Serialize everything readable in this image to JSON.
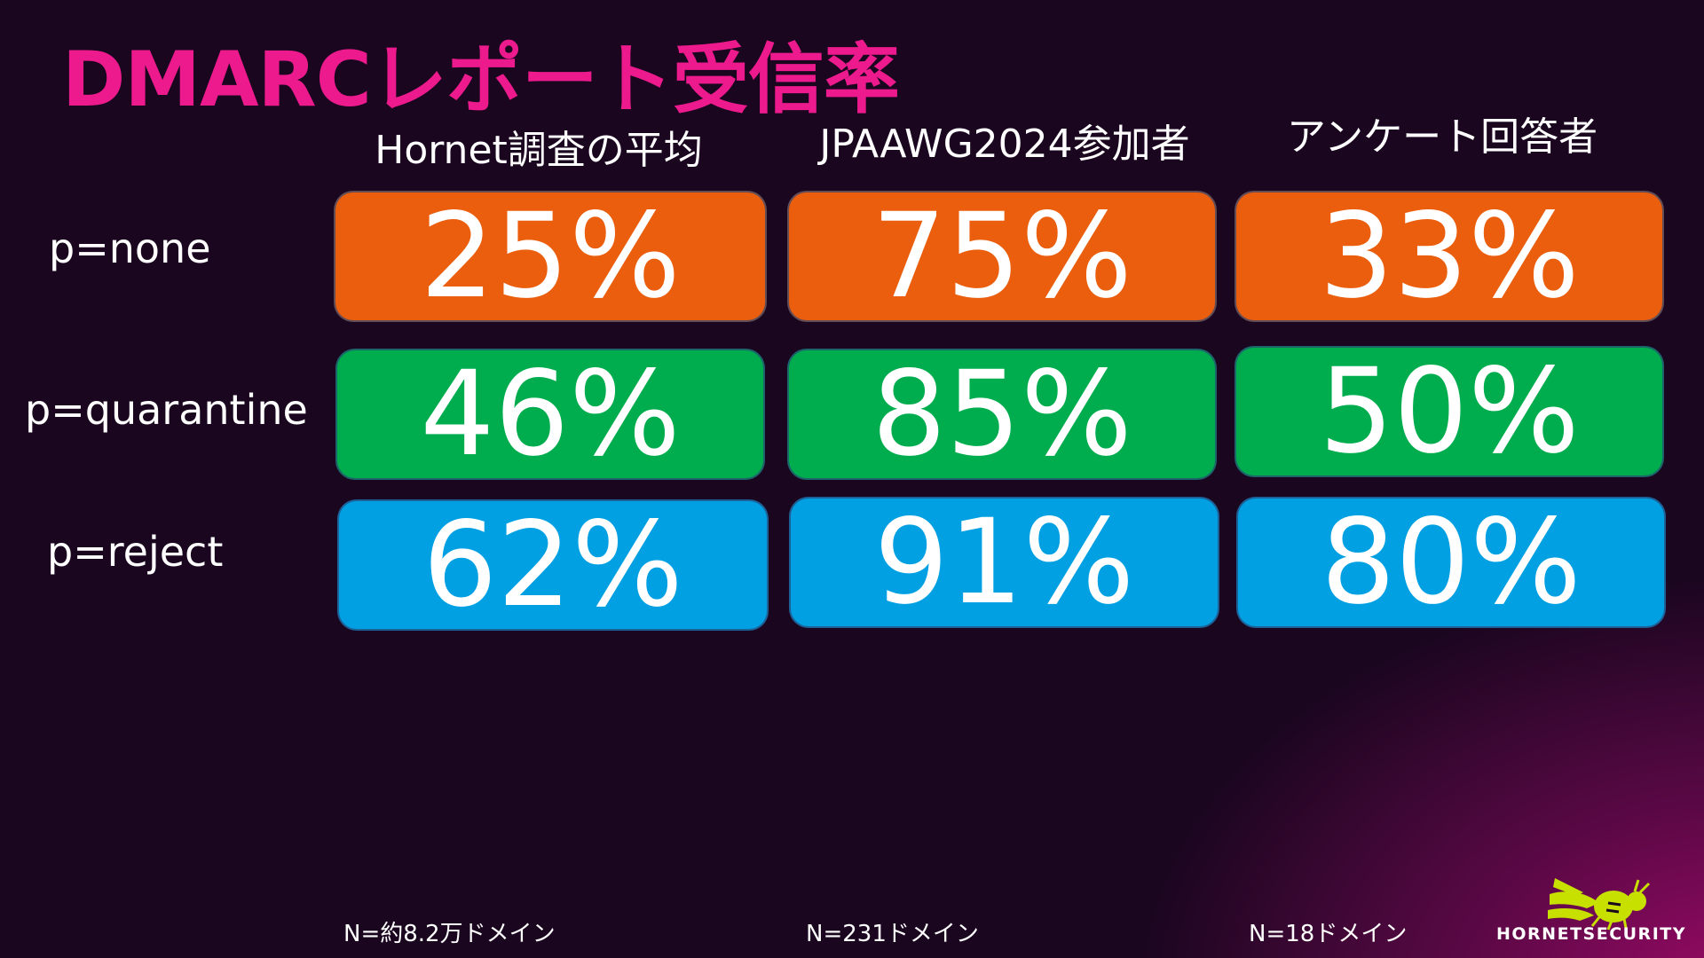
{
  "title": "DMARCレポート受信率",
  "columns": [
    "Hornet調査の平均",
    "JPAAWG2024参加者",
    "アンケート回答者"
  ],
  "rows": [
    {
      "label": "p=none",
      "color": "#ea5e0d",
      "values": [
        "25%",
        "75%",
        "33%"
      ]
    },
    {
      "label": "p=quarantine",
      "color": "#00ad4e",
      "values": [
        "46%",
        "85%",
        "50%"
      ]
    },
    {
      "label": "p=reject",
      "color": "#00a0e3",
      "values": [
        "62%",
        "91%",
        "80%"
      ]
    }
  ],
  "footnotes": [
    "N=約8.2万ドメイン",
    "N=231ドメイン",
    "N=18ドメイン"
  ],
  "logo": {
    "text": "HORNETSECURITY",
    "icon": "hornet-icon",
    "color": "#c8e000"
  },
  "colors": {
    "title": "#ec1a8c",
    "background": "#1b0620"
  }
}
